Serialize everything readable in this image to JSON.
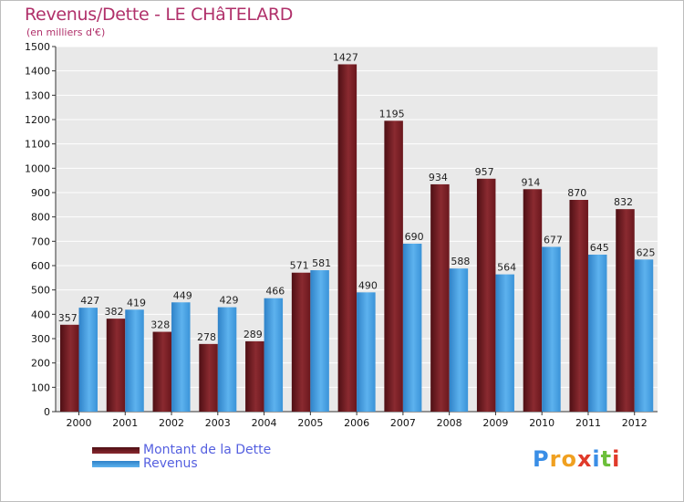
{
  "chart_data": {
    "type": "bar",
    "title": "Revenus/Dette - LE CHâTELARD",
    "subtitle": "(en milliers d'€)",
    "categories": [
      "2000",
      "2001",
      "2002",
      "2003",
      "2004",
      "2005",
      "2006",
      "2007",
      "2008",
      "2009",
      "2010",
      "2011",
      "2012"
    ],
    "series": [
      {
        "name": "Montant de la Dette",
        "color": "#7a1d22",
        "values": [
          357,
          382,
          328,
          278,
          289,
          571,
          1427,
          1195,
          934,
          957,
          914,
          870,
          832
        ]
      },
      {
        "name": "Revenus",
        "color": "#3f9be0",
        "values": [
          427,
          419,
          449,
          429,
          466,
          581,
          490,
          690,
          588,
          564,
          677,
          645,
          625
        ]
      }
    ],
    "ylim": [
      0,
      1500
    ],
    "yticks": [
      0,
      100,
      200,
      300,
      400,
      500,
      600,
      700,
      800,
      900,
      1000,
      1100,
      1200,
      1300,
      1400,
      1500
    ],
    "grid": true,
    "legend_position": "bottom-left"
  },
  "logo": {
    "text": "Proxiti",
    "letters": [
      {
        "ch": "P",
        "color": "#3a8ee6"
      },
      {
        "ch": "r",
        "color": "#f0a020"
      },
      {
        "ch": "o",
        "color": "#f0a020"
      },
      {
        "ch": "x",
        "color": "#e03a2a"
      },
      {
        "ch": "i",
        "color": "#3a8ee6"
      },
      {
        "ch": "t",
        "color": "#6cbf3a"
      },
      {
        "ch": "i",
        "color": "#e03a2a"
      }
    ]
  }
}
